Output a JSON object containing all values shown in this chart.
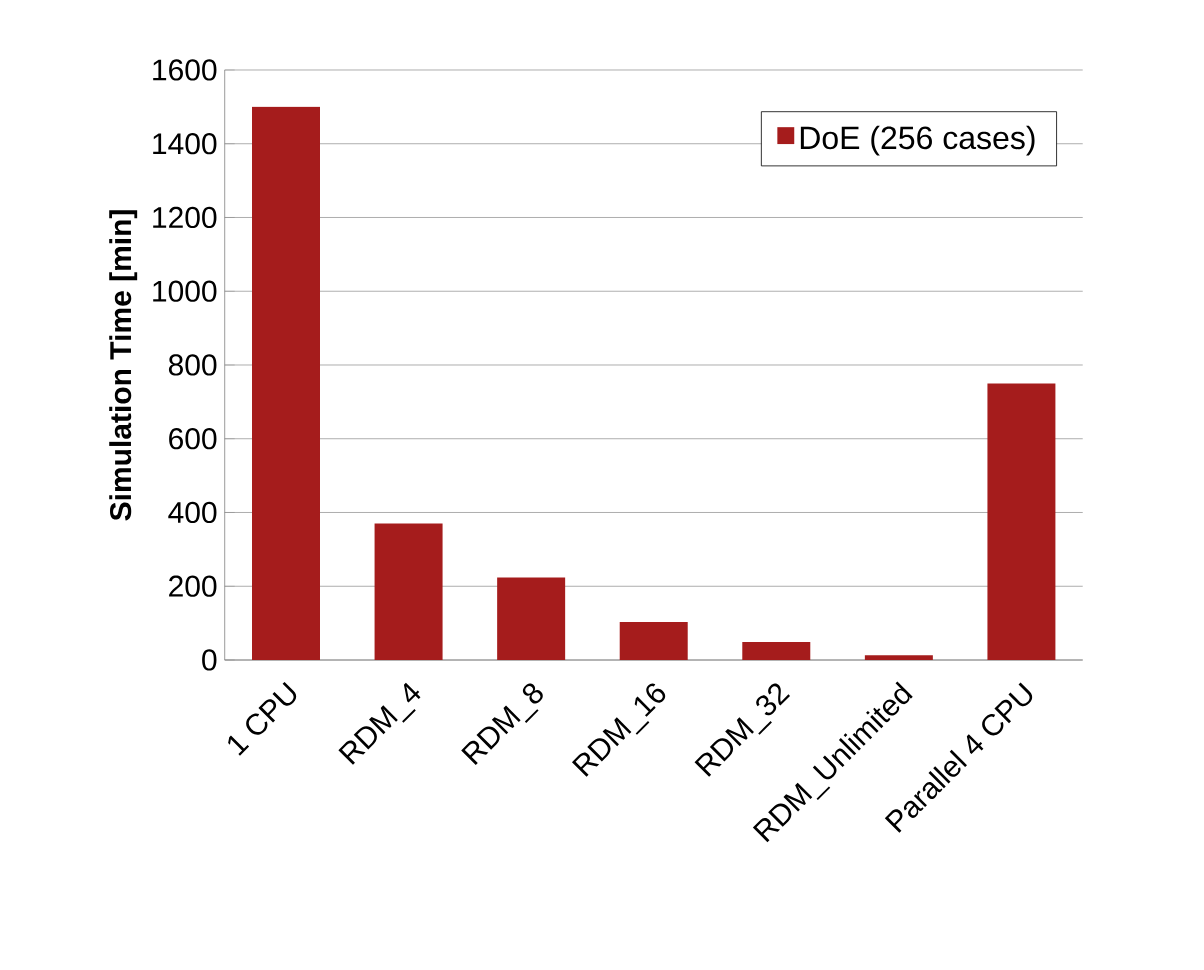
{
  "chart_data": {
    "type": "bar",
    "ylabel": "Simulation Time [min]",
    "categories": [
      "1 CPU",
      "RDM_4",
      "RDM_8",
      "RDM_16",
      "RDM_32",
      "RDM_Unlimited",
      "Parallel 4 CPU"
    ],
    "series": [
      {
        "name": "DoE (256 cases)",
        "color": "#a51c1c",
        "values": [
          1500,
          370,
          224,
          103,
          49,
          13,
          750
        ]
      }
    ],
    "ylim": [
      0,
      1600
    ],
    "yticks": [
      0,
      200,
      400,
      600,
      800,
      1000,
      1200,
      1400,
      1600
    ],
    "grid": "y",
    "legend": "top right"
  }
}
